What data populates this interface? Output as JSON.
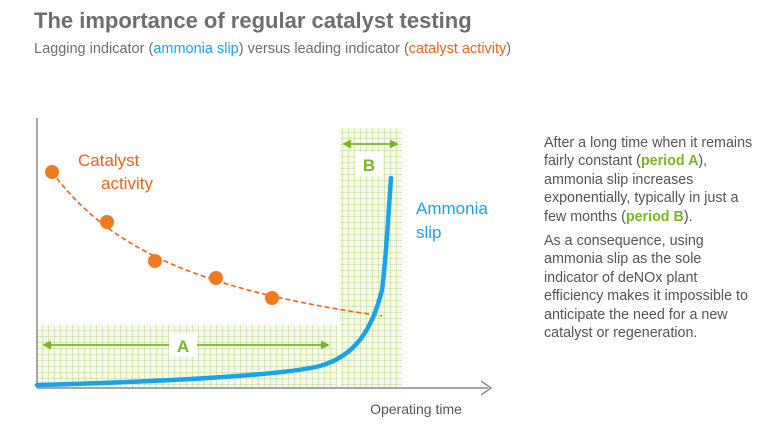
{
  "title": "The importance of regular catalyst testing",
  "subtitle": {
    "prefix": "Lagging indicator (",
    "lagging": "ammonia slip",
    "middle": ") versus leading indicator (",
    "leading": "catalyst activity",
    "suffix": ")"
  },
  "diagram": {
    "catalyst_label_line1": "Catalyst",
    "catalyst_label_line2": "activity",
    "ammonia_label_line1": "Ammonia",
    "ammonia_label_line2": "slip",
    "period_a": "A",
    "period_b": "B",
    "x_axis_label": "Operating time",
    "colors": {
      "catalyst": "#f07a1e",
      "ammonia": "#1aa3e8",
      "grid": "#7ab526",
      "axis": "#8a8a8a"
    }
  },
  "side_text": {
    "p1_a": "After a long time when it remains fairly constant (",
    "p1_period_a": "period A",
    "p1_b": "), ammonia slip increases exponentially, typically in just a few months (",
    "p1_period_b": "period B",
    "p1_c": ").",
    "p2": "As a consequence, using ammonia slip as the sole indicator of deNOx plant efficiency makes it impossible to anticipate the need for a new catalyst or regeneration."
  }
}
